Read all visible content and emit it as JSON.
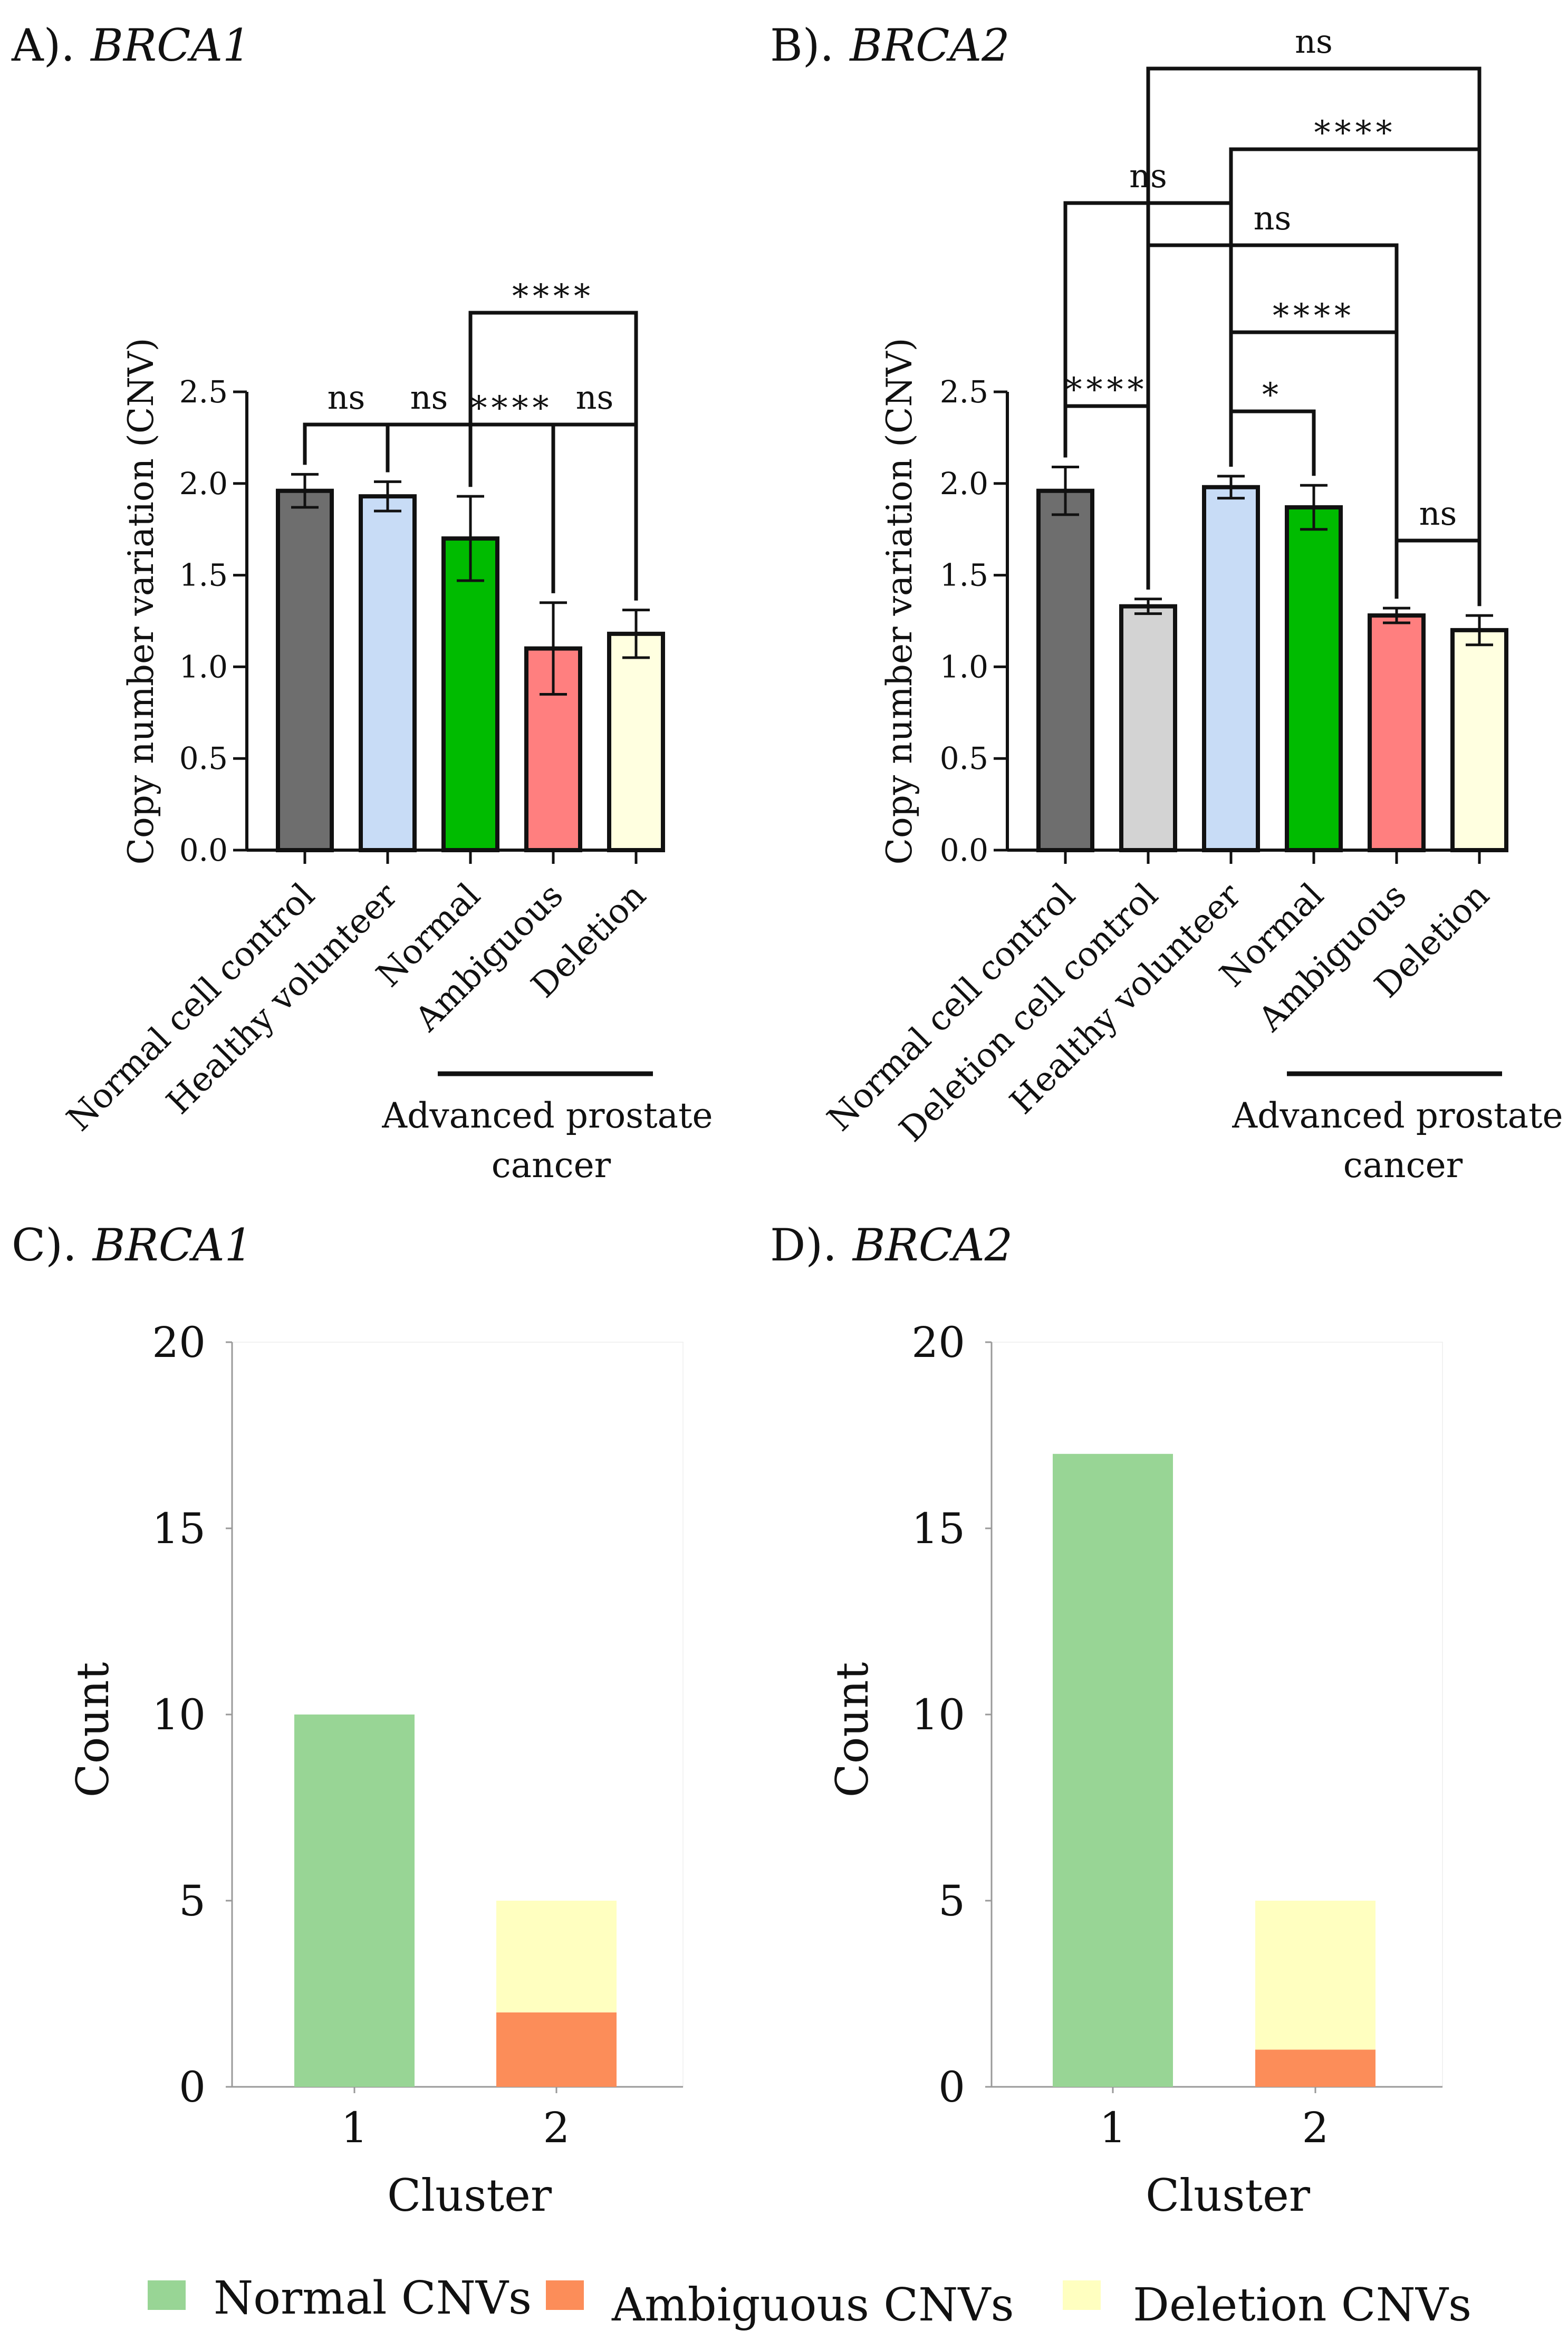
{
  "panels": {
    "A": {
      "prefix": "A).",
      "gene": "BRCA1",
      "ylabel": "Copy number variation (CNV)",
      "group_label_line1": "Advanced prostate",
      "group_label_line2": "cancer"
    },
    "B": {
      "prefix": "B).",
      "gene": "BRCA2",
      "ylabel": "Copy number variation (CNV)",
      "group_label_line1": "Advanced prostate",
      "group_label_line2": "cancer"
    },
    "C": {
      "prefix": "C).",
      "gene": "BRCA1",
      "ylabel": "Count",
      "xlabel": "Cluster"
    },
    "D": {
      "prefix": "D).",
      "gene": "BRCA2",
      "ylabel": "Count",
      "xlabel": "Cluster"
    }
  },
  "legend": [
    {
      "label": "Normal CNVs",
      "color": "#98d595"
    },
    {
      "label": "Ambiguous CNVs",
      "color": "#fc8d59"
    },
    {
      "label": "Deletion CNVs",
      "color": "#ffffc0"
    }
  ],
  "chart_data": [
    {
      "id": "A",
      "type": "bar",
      "title": "BRCA1",
      "ylabel": "Copy number variation (CNV)",
      "ylim": [
        0,
        2.5
      ],
      "yticks": [
        "0.0",
        "0.5",
        "1.0",
        "1.5",
        "2.0",
        "2.5"
      ],
      "categories": [
        "Normal cell control",
        "Healthy volunteer",
        "Normal",
        "Ambiguous",
        "Deletion"
      ],
      "values": [
        1.96,
        1.93,
        1.7,
        1.1,
        1.18
      ],
      "errors": [
        0.09,
        0.08,
        0.23,
        0.25,
        0.13
      ],
      "colors": [
        "#6e6e6e",
        "#c8dcf6",
        "#00bb00",
        "#ff7f7f",
        "#ffffe0"
      ],
      "group": {
        "label": "Advanced prostate cancer",
        "from": 2,
        "to": 4
      },
      "comparisons": [
        {
          "a": 0,
          "b": 1,
          "label": "ns"
        },
        {
          "a": 1,
          "b": 2,
          "label": "ns"
        },
        {
          "a": 2,
          "b": 3,
          "label": "****"
        },
        {
          "a": 3,
          "b": 4,
          "label": "ns"
        },
        {
          "a": 2,
          "b": 4,
          "label": "****"
        }
      ]
    },
    {
      "id": "B",
      "type": "bar",
      "title": "BRCA2",
      "ylabel": "Copy number variation (CNV)",
      "ylim": [
        0,
        2.5
      ],
      "yticks": [
        "0.0",
        "0.5",
        "1.0",
        "1.5",
        "2.0",
        "2.5"
      ],
      "categories": [
        "Normal cell control",
        "Deletion cell control",
        "Healthy volunteer",
        "Normal",
        "Ambiguous",
        "Deletion"
      ],
      "values": [
        1.96,
        1.33,
        1.98,
        1.87,
        1.28,
        1.2
      ],
      "errors": [
        0.13,
        0.04,
        0.06,
        0.12,
        0.04,
        0.08
      ],
      "colors": [
        "#6e6e6e",
        "#d3d3d3",
        "#c8dcf6",
        "#00bb00",
        "#ff7f7f",
        "#ffffe0"
      ],
      "group": {
        "label": "Advanced prostate cancer",
        "from": 3,
        "to": 5
      },
      "comparisons": [
        {
          "a": 0,
          "b": 1,
          "label": "****"
        },
        {
          "a": 2,
          "b": 3,
          "label": "*"
        },
        {
          "a": 4,
          "b": 5,
          "label": "ns"
        },
        {
          "a": 2,
          "b": 4,
          "label": "****"
        },
        {
          "a": 1,
          "b": 4,
          "label": "ns"
        },
        {
          "a": 0,
          "b": 2,
          "label": "ns"
        },
        {
          "a": 2,
          "b": 5,
          "label": "****"
        },
        {
          "a": 1,
          "b": 5,
          "label": "ns"
        }
      ]
    },
    {
      "id": "C",
      "type": "bar",
      "stacked": true,
      "title": "BRCA1",
      "xlabel": "Cluster",
      "ylabel": "Count",
      "ylim": [
        0,
        20
      ],
      "yticks": [
        "0",
        "5",
        "10",
        "15",
        "20"
      ],
      "categories": [
        "1",
        "2"
      ],
      "series": [
        {
          "name": "Normal CNVs",
          "values": [
            10,
            0
          ]
        },
        {
          "name": "Ambiguous CNVs",
          "values": [
            0,
            2
          ]
        },
        {
          "name": "Deletion CNVs",
          "values": [
            0,
            3
          ]
        }
      ]
    },
    {
      "id": "D",
      "type": "bar",
      "stacked": true,
      "title": "BRCA2",
      "xlabel": "Cluster",
      "ylabel": "Count",
      "ylim": [
        0,
        20
      ],
      "yticks": [
        "0",
        "5",
        "10",
        "15",
        "20"
      ],
      "categories": [
        "1",
        "2"
      ],
      "series": [
        {
          "name": "Normal CNVs",
          "values": [
            17,
            0
          ]
        },
        {
          "name": "Ambiguous CNVs",
          "values": [
            0,
            1
          ]
        },
        {
          "name": "Deletion CNVs",
          "values": [
            0,
            4
          ]
        }
      ]
    }
  ]
}
